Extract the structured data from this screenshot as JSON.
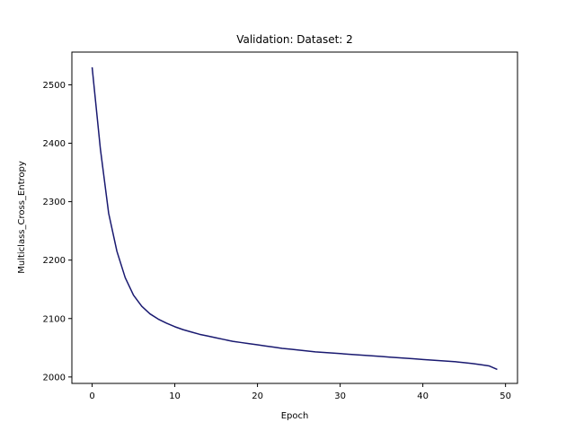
{
  "chart_data": {
    "type": "line",
    "title": "Validation: Dataset: 2",
    "xlabel": "Epoch",
    "ylabel": "Multiclass_Cross_Entropy",
    "xlim": [
      -2.45,
      51.45
    ],
    "ylim": [
      1989,
      2556
    ],
    "xticks": [
      0,
      10,
      20,
      30,
      40,
      50
    ],
    "yticks": [
      2000,
      2100,
      2200,
      2300,
      2400,
      2500
    ],
    "grid": false,
    "colors": {
      "line": "#191970"
    },
    "series": [
      {
        "x": [
          0,
          1,
          2,
          3,
          4,
          5,
          6,
          7,
          8,
          9,
          10,
          11,
          12,
          13,
          14,
          15,
          16,
          17,
          18,
          19,
          20,
          21,
          22,
          23,
          24,
          25,
          26,
          27,
          28,
          29,
          30,
          31,
          32,
          33,
          34,
          35,
          36,
          37,
          38,
          39,
          40,
          41,
          42,
          43,
          44,
          45,
          46,
          47,
          48,
          49
        ],
        "values": [
          2530,
          2390,
          2280,
          2215,
          2170,
          2140,
          2121,
          2108,
          2099,
          2092,
          2086,
          2081,
          2077,
          2073,
          2070,
          2067,
          2064,
          2061,
          2059,
          2057,
          2055,
          2053,
          2051,
          2049,
          2047.5,
          2046,
          2044.5,
          2043,
          2042,
          2041,
          2040,
          2039,
          2038,
          2037,
          2036,
          2035,
          2034,
          2033,
          2032,
          2031,
          2030,
          2029,
          2028,
          2027,
          2026,
          2024.5,
          2023,
          2021,
          2019,
          2013
        ]
      }
    ]
  }
}
